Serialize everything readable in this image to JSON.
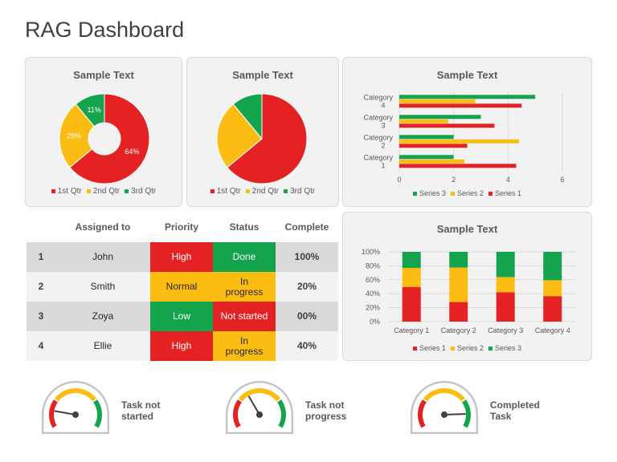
{
  "page": {
    "title": "RAG Dashboard"
  },
  "colors": {
    "red": "#e42224",
    "yellow": "#fcbd12",
    "green": "#14a44d",
    "card_bg": "#f2f2f2"
  },
  "table": {
    "headers": [
      "",
      "Assigned to",
      "Priority",
      "Status",
      "Complete"
    ],
    "rows": [
      {
        "num": "1",
        "name": "John",
        "priority": "High",
        "priority_color": "red",
        "status": "Done",
        "status_color": "green",
        "complete": "100%"
      },
      {
        "num": "2",
        "name": "Smith",
        "priority": "Normal",
        "priority_color": "yellow",
        "status": "In progress",
        "status_color": "yellow",
        "complete": "20%"
      },
      {
        "num": "3",
        "name": "Zoya",
        "priority": "Low",
        "priority_color": "green",
        "status": "Not started",
        "status_color": "red",
        "complete": "00%"
      },
      {
        "num": "4",
        "name": "Ellie",
        "priority": "High",
        "priority_color": "red",
        "status": "In progress",
        "status_color": "yellow",
        "complete": "40%"
      }
    ]
  },
  "gauges": [
    {
      "label": "Task not started",
      "needle_position": "red"
    },
    {
      "label": "Task not progress",
      "needle_position": "yellow"
    },
    {
      "label": "Completed Task",
      "needle_position": "green"
    }
  ],
  "chart_data": [
    {
      "type": "pie",
      "variant": "donut",
      "title": "Sample Text",
      "categories": [
        "1st Qtr",
        "2nd Qtr",
        "3rd Qtr"
      ],
      "values": [
        64,
        25,
        11
      ],
      "data_labels": [
        "64%",
        "25%",
        "11%"
      ],
      "colors": [
        "#e42224",
        "#fcbd12",
        "#14a44d"
      ],
      "legend": "bottom"
    },
    {
      "type": "pie",
      "title": "Sample Text",
      "categories": [
        "1st Qtr",
        "2nd Qtr",
        "3rd Qtr"
      ],
      "values": [
        64,
        25,
        11
      ],
      "colors": [
        "#e42224",
        "#fcbd12",
        "#14a44d"
      ],
      "legend": "bottom"
    },
    {
      "type": "bar",
      "orientation": "horizontal",
      "title": "Sample Text",
      "categories": [
        "Category 1",
        "Category 2",
        "Category 3",
        "Category 4"
      ],
      "series": [
        {
          "name": "Series 1",
          "values": [
            4.3,
            2.5,
            3.5,
            4.5
          ],
          "color": "#e42224"
        },
        {
          "name": "Series 2",
          "values": [
            2.4,
            4.4,
            1.8,
            2.8
          ],
          "color": "#fcbd12"
        },
        {
          "name": "Series 3",
          "values": [
            2,
            2,
            3,
            5
          ],
          "color": "#14a44d"
        }
      ],
      "xlim": [
        0,
        6
      ],
      "xticks": [
        "0",
        "2",
        "4",
        "6"
      ],
      "legend": "bottom",
      "legend_order": [
        "Series 3",
        "Series 2",
        "Series 1"
      ],
      "grid": true
    },
    {
      "type": "bar",
      "variant": "stacked-100",
      "title": "Sample Text",
      "categories": [
        "Category 1",
        "Category 2",
        "Category 3",
        "Category 4"
      ],
      "series": [
        {
          "name": "Series 1",
          "values": [
            4.3,
            2.5,
            3.5,
            4.5
          ],
          "color": "#e42224"
        },
        {
          "name": "Series 2",
          "values": [
            2.4,
            4.4,
            1.8,
            2.8
          ],
          "color": "#fcbd12"
        },
        {
          "name": "Series 3",
          "values": [
            2,
            2,
            3,
            5
          ],
          "color": "#14a44d"
        }
      ],
      "yticks": [
        "0%",
        "20%",
        "40%",
        "60%",
        "80%",
        "100%"
      ],
      "legend": "bottom",
      "grid": true
    }
  ]
}
